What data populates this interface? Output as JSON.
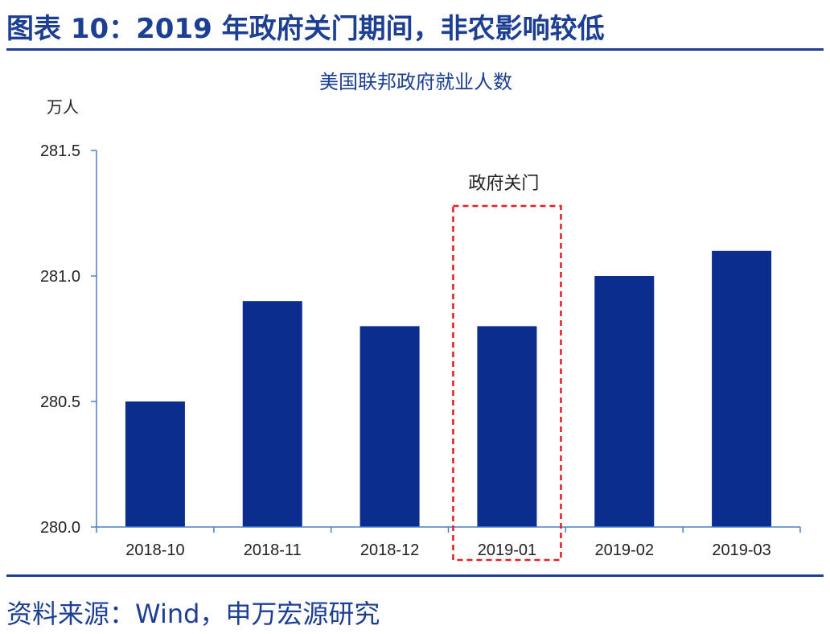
{
  "figure_title": "图表 10：2019 年政府关门期间，非农影响较低",
  "source": "资料来源：Wind，申万宏源研究",
  "colors": {
    "bar": "#0b2d8e",
    "axis": "#4a7fc9",
    "highlight": "#e02020",
    "title": "#1c3f94"
  },
  "chart_data": {
    "type": "bar",
    "title": "美国联邦政府就业人数",
    "ylabel": "万人",
    "xlabel": "",
    "categories": [
      "2018-10",
      "2018-11",
      "2018-12",
      "2019-01",
      "2019-02",
      "2019-03"
    ],
    "values": [
      280.5,
      280.9,
      280.8,
      280.8,
      281.0,
      281.1
    ],
    "ylim": [
      280.0,
      281.5
    ],
    "yticks": [
      "280.0",
      "280.5",
      "281.0",
      "281.5"
    ],
    "grid": false,
    "annotation": {
      "label": "政府关门",
      "category": "2019-01"
    }
  }
}
